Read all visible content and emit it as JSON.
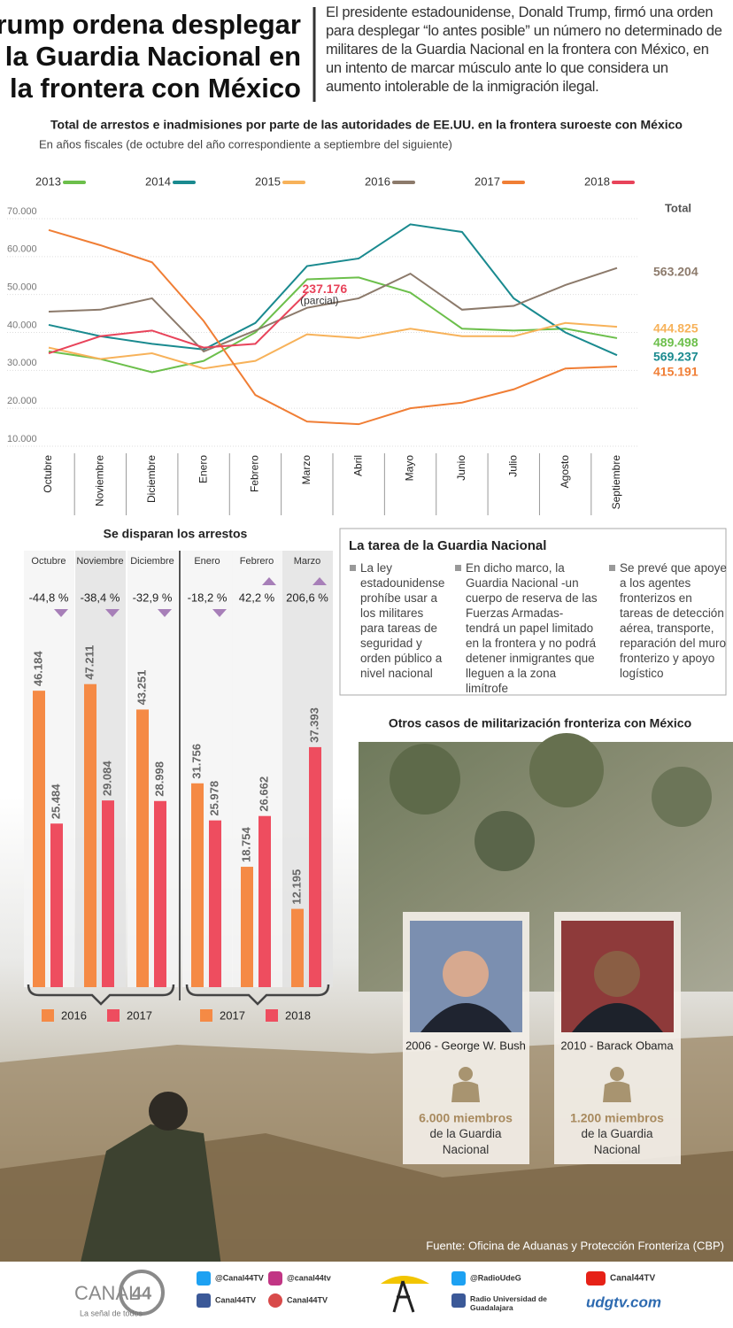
{
  "header": {
    "title_lines": [
      "Trump ordena desplegar",
      "la Guardia Nacional en",
      "la frontera con México"
    ],
    "intro": "El presidente estadounidense, Donald Trump, firmó una orden para desplegar “lo antes posible” un número no determinado de militares de la Guardia Nacional en la frontera con México, en un intento de marcar músculo ante lo que considera un aumento intolerable de la inmigración ilegal."
  },
  "chart_data": [
    {
      "type": "line",
      "title": "Total de arrestos e inadmisiones por parte de las autoridades de EE.UU. en la frontera suroeste con México",
      "subtitle": "En años fiscales (de octubre del año correspondiente a septiembre del siguiente)",
      "total_heading": "Total",
      "categories": [
        "Octubre",
        "Noviembre",
        "Diciembre",
        "Enero",
        "Febrero",
        "Marzo",
        "Abril",
        "Mayo",
        "Junio",
        "Julio",
        "Agosto",
        "Septiembre"
      ],
      "ylim": [
        10000,
        70000
      ],
      "yticks": [
        {
          "value": 10000,
          "label": "10.000"
        },
        {
          "value": 20000,
          "label": "20.000"
        },
        {
          "value": 30000,
          "label": "30.000"
        },
        {
          "value": 40000,
          "label": "40.000"
        },
        {
          "value": 50000,
          "label": "50.000"
        },
        {
          "value": 60000,
          "label": "60.000"
        },
        {
          "value": 70000,
          "label": "70.000"
        }
      ],
      "grid": true,
      "series": [
        {
          "name": "2013",
          "color": "#6cbf4b",
          "values": [
            35000,
            33000,
            29500,
            32500,
            40000,
            54000,
            54500,
            50500,
            41000,
            40500,
            41000,
            38500
          ],
          "total": 489498,
          "total_label": "489.498"
        },
        {
          "name": "2014",
          "color": "#1a8a8f",
          "values": [
            42000,
            39000,
            37000,
            35500,
            42500,
            57500,
            59500,
            68500,
            66500,
            49000,
            40000,
            34000
          ],
          "total": 569237,
          "total_label": "569.237"
        },
        {
          "name": "2015",
          "color": "#f7b25a",
          "values": [
            36000,
            33000,
            34500,
            30500,
            32500,
            39500,
            38500,
            41000,
            39000,
            39000,
            42500,
            41500
          ],
          "total": 444825,
          "total_label": "444.825"
        },
        {
          "name": "2016",
          "color": "#8c7a6b",
          "values": [
            45500,
            46000,
            49000,
            35000,
            40500,
            46500,
            49000,
            55500,
            46000,
            47000,
            52500,
            57000
          ],
          "total": 563204,
          "total_label": "563.204"
        },
        {
          "name": "2017",
          "color": "#f07e35",
          "values": [
            67000,
            63000,
            58500,
            43000,
            23500,
            16500,
            15800,
            20000,
            21500,
            25000,
            30500,
            31000
          ],
          "total": 415191,
          "total_label": "415.191"
        },
        {
          "name": "2018",
          "color": "#e8435a",
          "values": [
            34500,
            39000,
            40500,
            36000,
            37000,
            50500,
            null,
            null,
            null,
            null,
            null,
            null
          ],
          "total": 237176,
          "total_label": "237.176",
          "annotation": "(parcial)"
        }
      ]
    },
    {
      "type": "bar",
      "title": "Se disparan los arrestos",
      "categories": [
        "Octubre",
        "Noviembre",
        "Diciembre"
      ],
      "changes": [
        -44.8,
        -38.4,
        -32.9
      ],
      "change_labels": [
        "-44,8 %",
        "-38,4 %",
        "-32,9 %"
      ],
      "series": [
        {
          "name": "2016",
          "color": "#f58a45",
          "values": [
            46184,
            47211,
            43251
          ],
          "value_labels": [
            "46.184",
            "47.211",
            "43.251"
          ]
        },
        {
          "name": "2017",
          "color": "#ee4d5f",
          "values": [
            25484,
            29084,
            28998
          ],
          "value_labels": [
            "25.484",
            "29.084",
            "28.998"
          ]
        }
      ]
    },
    {
      "type": "bar",
      "categories": [
        "Enero",
        "Febrero",
        "Marzo"
      ],
      "changes": [
        -18.2,
        42.2,
        206.6
      ],
      "change_labels": [
        "-18,2 %",
        "42,2 %",
        "206,6 %"
      ],
      "series": [
        {
          "name": "2017",
          "color": "#f58a45",
          "values": [
            31756,
            18754,
            12195
          ],
          "value_labels": [
            "31.756",
            "18.754",
            "12.195"
          ]
        },
        {
          "name": "2018",
          "color": "#ee4d5f",
          "values": [
            25978,
            26662,
            37393
          ],
          "value_labels": [
            "25.978",
            "26.662",
            "37.393"
          ]
        }
      ]
    }
  ],
  "guard": {
    "title": "La tarea de la Guardia Nacional",
    "bullets": [
      "La ley estadounidense prohíbe usar a los militares para tareas de seguridad y orden público a nivel nacional",
      "En dicho marco, la Guardia Nacional -un cuerpo de reserva de las Fuerzas Armadas- tendrá un papel limitado en la frontera y no podrá detener inmigrantes que lleguen a la zona limítrofe",
      "Se prevé que apoye a los agentes fronterizos en tareas de detección aérea, transporte, reparación del muro fronterizo y apoyo logístico"
    ]
  },
  "other_cases": {
    "title": "Otros casos de militarización fronteriza con México",
    "cases": [
      {
        "label": "2006 - George W. Bush",
        "members": "6.000 miembros",
        "detail": "de la Guardia Nacional"
      },
      {
        "label": "2010 - Barack Obama",
        "members": "1.200 miembros",
        "detail": "de la Guardia Nacional"
      }
    ]
  },
  "source": "Fuente: Oficina de Aduanas y Protección Fronteriza (CBP)",
  "footer": {
    "logo": "CANAL",
    "logo_number": "44",
    "slogan": "La señal de todos",
    "twitter": "@Canal44TV",
    "instagram": "@canal44tv",
    "facebook": "Canal44TV",
    "periscope": "Canal44TV",
    "radio_twitter": "@RadioUdeG",
    "radio_facebook": "Radio Universidad de Guadalajara",
    "youtube": "Canal44TV",
    "site": "udgtv.com"
  }
}
